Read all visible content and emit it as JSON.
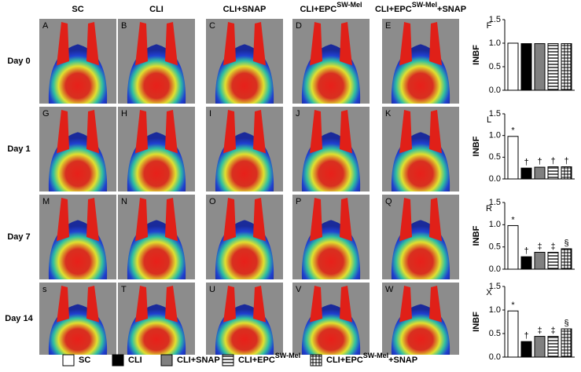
{
  "groups": [
    {
      "name": [
        "SC"
      ],
      "fill": "#ffffff",
      "pattern": "none"
    },
    {
      "name": [
        "CLI"
      ],
      "fill": "#000000",
      "pattern": "none"
    },
    {
      "name": [
        "CLI+SNAP"
      ],
      "fill": "#808080",
      "pattern": "none"
    },
    {
      "name": [
        "CLI+EPC",
        "SW-Mel"
      ],
      "fill": "#ffffff",
      "pattern": "hlines"
    },
    {
      "name": [
        "CLI+EPC",
        "SW-Mel",
        "+SNAP"
      ],
      "fill": "#ffffff",
      "pattern": "grid"
    }
  ],
  "rows": [
    "Day 0",
    "Day 1",
    "Day 7",
    "Day 14"
  ],
  "panels": [
    [
      "A",
      "B",
      "C",
      "D",
      "E"
    ],
    [
      "G",
      "H",
      "I",
      "J",
      "K"
    ],
    [
      "M",
      "N",
      "O",
      "P",
      "Q"
    ],
    [
      "s",
      "T",
      "U",
      "V",
      "W"
    ]
  ],
  "chart_data": [
    {
      "type": "bar",
      "panel": "F",
      "ylabel": "INBF",
      "values": [
        1.0,
        0.99,
        0.99,
        0.99,
        0.99
      ],
      "markers": [],
      "ylim": [
        0,
        1.5
      ],
      "yticks": [
        {
          "value": 0,
          "label": "0.0"
        },
        {
          "value": 0.5,
          "label": "0.5"
        },
        {
          "value": 1,
          "label": "1.0"
        },
        {
          "value": 1.5,
          "label": "1.5"
        }
      ]
    },
    {
      "type": "bar",
      "panel": "L",
      "ylabel": "INBF",
      "values": [
        0.98,
        0.25,
        0.27,
        0.28,
        0.28
      ],
      "markers": [
        "*",
        "†",
        "†",
        "†",
        "†"
      ],
      "ylim": [
        0,
        1.5
      ],
      "yticks": [
        {
          "value": 0,
          "label": "0.0"
        },
        {
          "value": 0.5,
          "label": "0.5"
        },
        {
          "value": 1,
          "label": "1.0"
        },
        {
          "value": 1.5,
          "label": "1.5"
        }
      ]
    },
    {
      "type": "bar",
      "panel": "R",
      "ylabel": "INBF",
      "values": [
        0.98,
        0.28,
        0.38,
        0.38,
        0.46
      ],
      "markers": [
        "*",
        "†",
        "‡",
        "‡",
        "§"
      ],
      "ylim": [
        0,
        1.5
      ],
      "yticks": [
        {
          "value": 0,
          "label": "0.0"
        },
        {
          "value": 0.5,
          "label": "0.5"
        },
        {
          "value": 1,
          "label": "1.0"
        },
        {
          "value": 1.5,
          "label": "1.5"
        }
      ]
    },
    {
      "type": "bar",
      "panel": "X",
      "ylabel": "INBF",
      "values": [
        0.98,
        0.33,
        0.44,
        0.44,
        0.6
      ],
      "markers": [
        "*",
        "†",
        "‡",
        "‡",
        "§"
      ],
      "ylim": [
        0,
        1.5
      ],
      "yticks": [
        {
          "value": 0,
          "label": "0.0"
        },
        {
          "value": 0.5,
          "label": "0.5"
        },
        {
          "value": 1,
          "label": "1.0"
        },
        {
          "value": 1.5,
          "label": "1.5"
        }
      ]
    }
  ]
}
